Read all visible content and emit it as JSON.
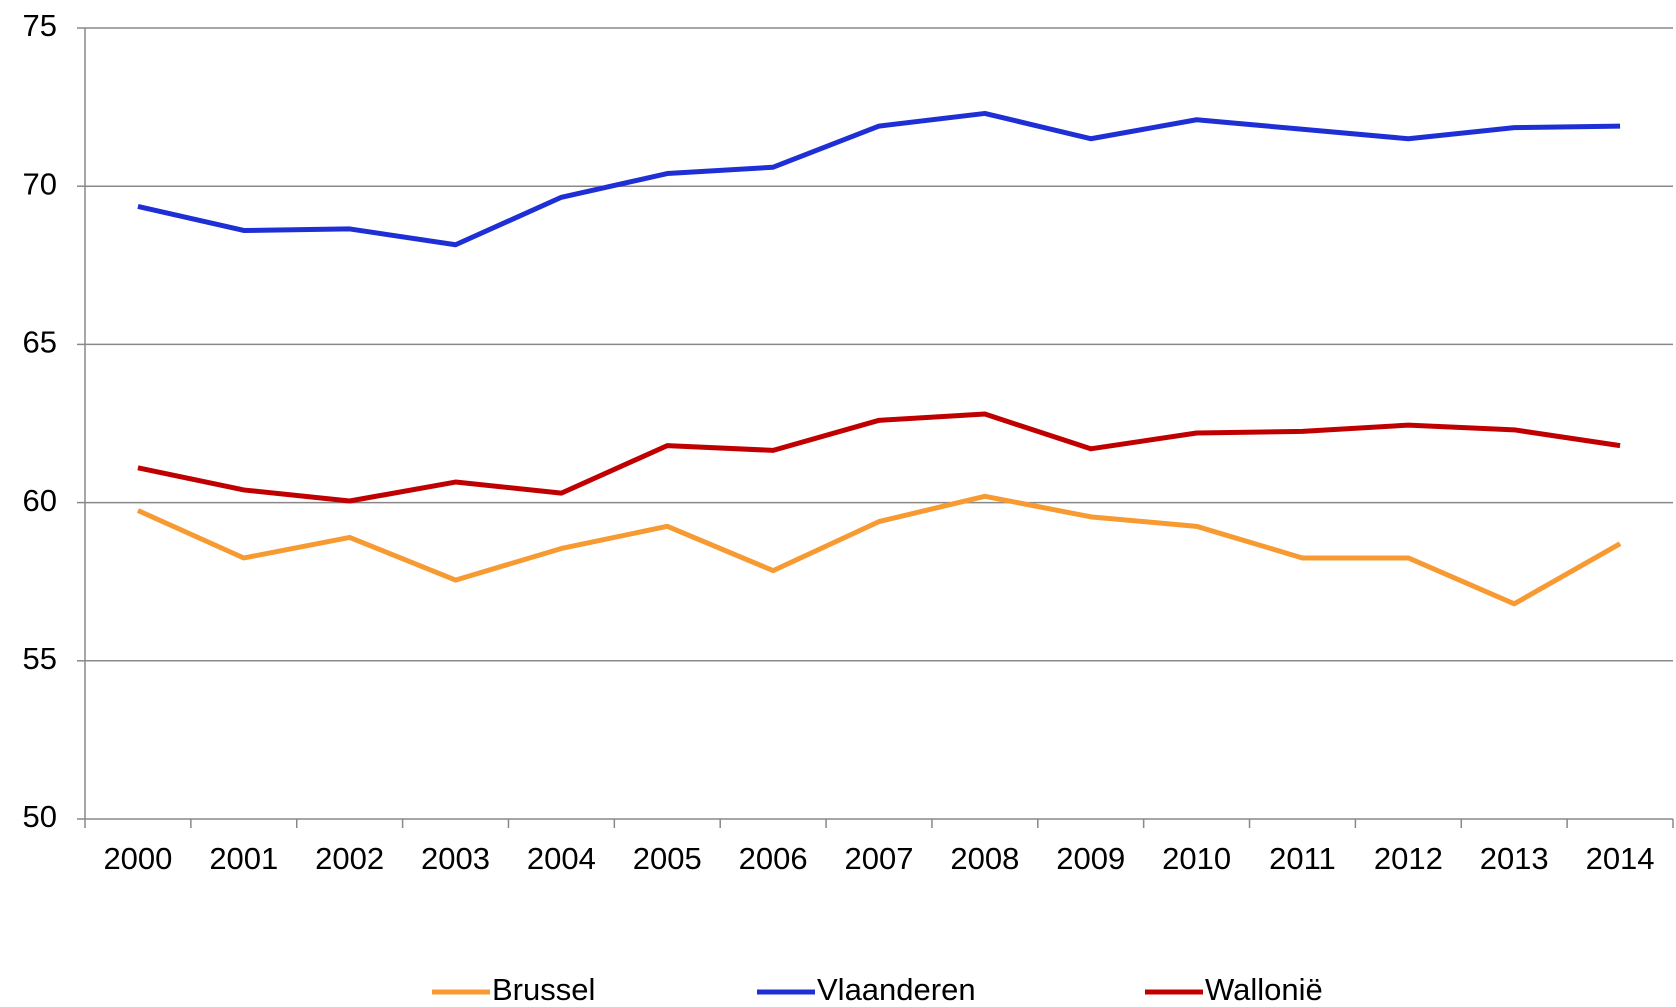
{
  "chart_data": {
    "type": "line",
    "categories": [
      "2000",
      "2001",
      "2002",
      "2003",
      "2004",
      "2005",
      "2006",
      "2007",
      "2008",
      "2009",
      "2010",
      "2011",
      "2012",
      "2013",
      "2014"
    ],
    "series": [
      {
        "name": "Brussel",
        "color": "#f79a32",
        "values": [
          59.75,
          58.25,
          58.9,
          57.55,
          58.55,
          59.25,
          57.85,
          59.4,
          60.2,
          59.55,
          59.25,
          58.25,
          58.25,
          56.8,
          58.7
        ]
      },
      {
        "name": "Vlaanderen",
        "color": "#1f2fd6",
        "values": [
          69.36,
          68.6,
          68.65,
          68.15,
          69.65,
          70.4,
          70.6,
          71.9,
          72.3,
          71.5,
          72.1,
          71.8,
          71.5,
          71.85,
          71.9
        ]
      },
      {
        "name": "Wallonië",
        "color": "#c00000",
        "values": [
          61.1,
          60.4,
          60.05,
          60.65,
          60.3,
          61.8,
          61.65,
          62.6,
          62.8,
          61.7,
          62.2,
          62.25,
          62.45,
          62.3,
          61.8
        ]
      }
    ],
    "ylim": [
      50,
      75
    ],
    "yticks": [
      50,
      55,
      60,
      65,
      70,
      75
    ],
    "grid": true,
    "legend": "bottom"
  }
}
